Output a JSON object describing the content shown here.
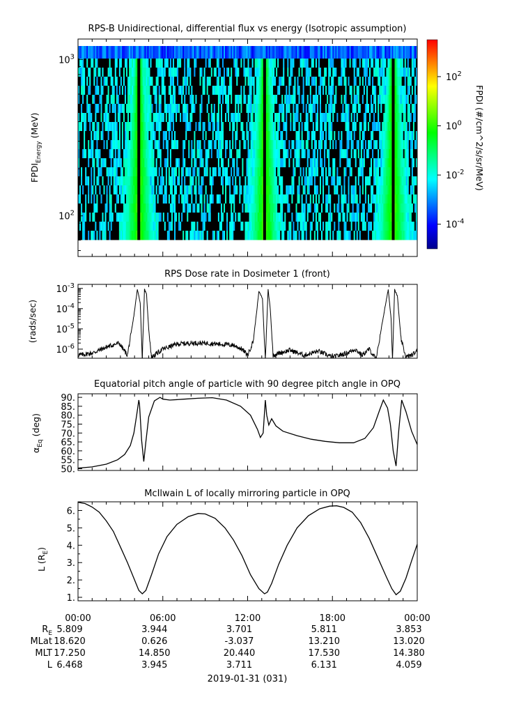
{
  "colors": {
    "background": "#ffffff",
    "axis": "#000000",
    "trace": "#000000"
  },
  "chart_data": [
    {
      "type": "heatmap",
      "title": "RPS-B  Unidirectional, differential flux vs energy (Isotropic assumption)",
      "ylabel_main": "FPDI",
      "ylabel_sub": "Energy",
      "ylabel_unit": " (MeV)",
      "yscale": "log",
      "ylim": [
        55,
        1350
      ],
      "yticks": [
        {
          "base": "10",
          "exp": "2",
          "value": 100
        },
        {
          "base": "10",
          "exp": "3",
          "value": 1000
        }
      ],
      "energy_bands": 20,
      "xlim_hours": [
        0,
        24
      ],
      "belt_passes_hours": [
        4.3,
        13.2,
        22.3
      ],
      "colorbar": {
        "label": "FPDI (#/cm^2/s/sr/MeV)",
        "scale": "log",
        "range_exp": [
          -5,
          3.5
        ],
        "ticks": [
          {
            "base": "10",
            "exp": "2",
            "value": 2
          },
          {
            "base": "10",
            "exp": "0",
            "value": 0
          },
          {
            "base": "10",
            "exp": "-2",
            "value": -2
          },
          {
            "base": "10",
            "exp": "-4",
            "value": -4
          }
        ],
        "colormap": [
          "#00008b",
          "#0000ff",
          "#0080ff",
          "#00ffff",
          "#00ff80",
          "#00ff00",
          "#80ff00",
          "#ffff00",
          "#ff8000",
          "#ff0000"
        ]
      }
    },
    {
      "type": "line",
      "title": "RPS  Dose rate in Dosimeter 1 (front)",
      "ylabel": "(rads/sec)",
      "yscale": "log",
      "ylim_exp": [
        -6.45,
        -2.8
      ],
      "yticks": [
        {
          "base": "10",
          "exp": "-3",
          "value": -3
        },
        {
          "base": "10",
          "exp": "-4",
          "value": -4
        },
        {
          "base": "10",
          "exp": "-5",
          "value": -5
        },
        {
          "base": "10",
          "exp": "-6",
          "value": -6
        }
      ],
      "x_hours": [
        0,
        1.0,
        2.0,
        2.9,
        3.5,
        3.9,
        4.2,
        4.4,
        4.55,
        4.7,
        4.85,
        5.0,
        5.2,
        5.6,
        6.0,
        7.0,
        8.0,
        9.0,
        10.0,
        11.0,
        11.6,
        12.0,
        12.4,
        12.8,
        13.05,
        13.25,
        13.45,
        13.6,
        13.8,
        14.2,
        15.0,
        16.0,
        17.0,
        18.0,
        19.0,
        19.6,
        20.1,
        20.6,
        21.1,
        21.5,
        21.95,
        22.15,
        22.25,
        22.4,
        22.6,
        22.85,
        23.2,
        23.6,
        24.0
      ],
      "log10_dose": [
        -6.3,
        -6.2,
        -5.9,
        -5.7,
        -6.3,
        -4.6,
        -3.05,
        -3.7,
        -6.5,
        -3.05,
        -3.3,
        -5.0,
        -6.4,
        -6.2,
        -6.0,
        -5.75,
        -5.7,
        -5.7,
        -5.75,
        -5.8,
        -6.0,
        -6.3,
        -5.6,
        -3.15,
        -3.5,
        -6.5,
        -3.05,
        -4.0,
        -6.3,
        -6.2,
        -6.05,
        -6.3,
        -6.1,
        -6.4,
        -6.2,
        -6.0,
        -6.3,
        -6.0,
        -6.5,
        -4.8,
        -3.05,
        -4.5,
        -6.5,
        -3.05,
        -3.4,
        -5.5,
        -6.4,
        -6.3,
        -6.1
      ]
    },
    {
      "type": "line",
      "title": "Equatorial pitch angle of particle with 90 degree pitch angle in OPQ",
      "ylabel_main": "α",
      "ylabel_sub": "Eq",
      "ylabel_unit": " (deg)",
      "ylim": [
        49,
        92
      ],
      "yticks": [
        50,
        55,
        60,
        65,
        70,
        75,
        80,
        85,
        90
      ],
      "ytick_labels": [
        "50.",
        "55.",
        "60.",
        "65.",
        "70.",
        "75.",
        "80.",
        "85.",
        "90."
      ],
      "x_hours": [
        0,
        1.0,
        2.0,
        2.8,
        3.3,
        3.7,
        3.95,
        4.15,
        4.3,
        4.35,
        4.5,
        4.65,
        4.8,
        5.0,
        5.4,
        5.8,
        6.0,
        6.5,
        7.5,
        8.5,
        9.5,
        10.5,
        11.5,
        12.2,
        12.7,
        12.9,
        13.1,
        13.25,
        13.35,
        13.5,
        13.7,
        14.0,
        14.5,
        15.5,
        16.5,
        17.5,
        18.5,
        19.5,
        20.3,
        20.9,
        21.3,
        21.6,
        21.9,
        22.1,
        22.3,
        22.5,
        22.7,
        22.9,
        23.2,
        23.6,
        24.0
      ],
      "values": [
        50.3,
        51.0,
        52.5,
        55.0,
        58.0,
        63.0,
        70.0,
        80.0,
        88.5,
        86.0,
        66.0,
        54.0,
        65.0,
        79.0,
        88.0,
        90.0,
        89.0,
        88.5,
        89.0,
        89.5,
        89.8,
        88.5,
        85.0,
        80.0,
        72.0,
        67.5,
        70.0,
        88.5,
        80.0,
        74.5,
        78.0,
        74.0,
        71.0,
        68.5,
        66.5,
        65.3,
        64.5,
        64.5,
        67.0,
        73.0,
        82.0,
        88.5,
        84.0,
        75.0,
        60.0,
        51.5,
        72.0,
        88.5,
        82.0,
        71.0,
        63.5
      ]
    },
    {
      "type": "line",
      "title": "McIlwain L of locally mirroring particle in OPQ",
      "ylabel_main": "L (R",
      "ylabel_sub": "E",
      "ylabel_unit": ")",
      "ylim": [
        0.8,
        6.5
      ],
      "yticks": [
        1,
        2,
        3,
        4,
        5,
        6
      ],
      "ytick_labels": [
        "1.",
        "2.",
        "3.",
        "4.",
        "5.",
        "6."
      ],
      "x_hours": [
        0,
        0.5,
        1.0,
        1.5,
        2.0,
        2.5,
        3.0,
        3.5,
        4.0,
        4.3,
        4.55,
        4.8,
        5.2,
        5.7,
        6.3,
        7.0,
        7.8,
        8.5,
        9.0,
        9.7,
        10.4,
        11.0,
        11.6,
        12.2,
        12.8,
        13.2,
        13.4,
        13.7,
        14.2,
        14.8,
        15.5,
        16.3,
        17.1,
        17.8,
        18.3,
        18.8,
        19.4,
        20.0,
        20.6,
        21.2,
        21.8,
        22.2,
        22.5,
        22.8,
        23.2,
        23.6,
        24.0
      ],
      "values": [
        6.47,
        6.4,
        6.2,
        5.9,
        5.4,
        4.8,
        3.9,
        3.0,
        2.0,
        1.4,
        1.2,
        1.4,
        2.3,
        3.5,
        4.5,
        5.2,
        5.65,
        5.83,
        5.8,
        5.55,
        5.0,
        4.3,
        3.4,
        2.3,
        1.5,
        1.2,
        1.3,
        1.8,
        2.9,
        4.0,
        5.0,
        5.7,
        6.1,
        6.25,
        6.27,
        6.18,
        5.9,
        5.3,
        4.4,
        3.3,
        2.2,
        1.5,
        1.15,
        1.35,
        2.1,
        3.1,
        4.06
      ]
    }
  ],
  "xaxis": {
    "tick_labels": [
      "00:00",
      "06:00",
      "12:00",
      "18:00",
      "00:00"
    ],
    "ephemeris": [
      {
        "label": "R",
        "sub": "E",
        "values": [
          "5.809",
          "3.944",
          "3.701",
          "5.811",
          "3.853"
        ]
      },
      {
        "label": "MLat",
        "sub": "",
        "values": [
          "18.620",
          "0.626",
          "-3.037",
          "13.210",
          "13.020"
        ]
      },
      {
        "label": "MLT",
        "sub": "",
        "values": [
          "17.250",
          "14.850",
          "20.440",
          "17.530",
          "14.380"
        ]
      },
      {
        "label": "L",
        "sub": "",
        "values": [
          "6.468",
          "3.945",
          "3.711",
          "6.131",
          "4.059"
        ]
      }
    ],
    "date_label": "2019-01-31 (031)"
  }
}
